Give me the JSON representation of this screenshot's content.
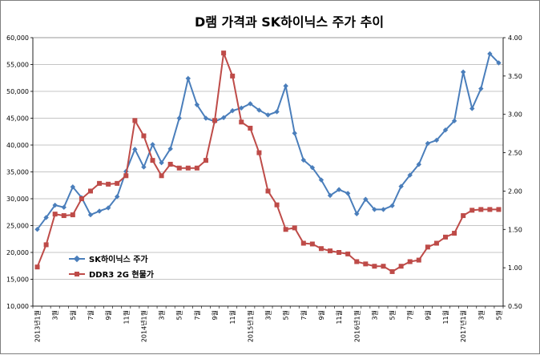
{
  "chart_data": {
    "type": "line",
    "title": "D램 가격과 SK하이닉스 주가 추이",
    "x_labels": [
      "2013년1월",
      "3월",
      "5월",
      "7월",
      "9월",
      "11월",
      "2014년1월",
      "3월",
      "5월",
      "7월",
      "9월",
      "11월",
      "2015년1월",
      "3월",
      "5월",
      "7월",
      "9월",
      "11월",
      "2016년1월",
      "3월",
      "5월",
      "7월",
      "9월",
      "11월",
      "2017년1월",
      "3월",
      "5월"
    ],
    "y_left": {
      "min": 10000,
      "max": 60000,
      "step": 5000,
      "tick_labels": [
        "10,000",
        "15,000",
        "20,000",
        "25,000",
        "30,000",
        "35,000",
        "40,000",
        "45,000",
        "50,000",
        "55,000",
        "60,000"
      ]
    },
    "y_right": {
      "min": 0.5,
      "max": 4.0,
      "step": 0.5,
      "tick_labels": [
        "0.50",
        "1.00",
        "1.50",
        "2.00",
        "2.50",
        "3.00",
        "3.50",
        "4.00"
      ]
    },
    "grid": true,
    "legend_position": "bottom-left",
    "series": [
      {
        "name": "SK하이닉스 주가",
        "axis": "left",
        "color": "#4a7ebb",
        "marker": "diamond",
        "values": [
          24300,
          26500,
          28800,
          28400,
          32200,
          30200,
          27000,
          27700,
          28300,
          30400,
          35100,
          39200,
          35900,
          40100,
          36700,
          39300,
          45000,
          52400,
          47500,
          45000,
          44400,
          45100,
          46400,
          46900,
          47700,
          46500,
          45600,
          46200,
          51000,
          42200,
          37200,
          35800,
          33500,
          30600,
          31700,
          31000,
          27200,
          29900,
          28000,
          28000,
          28700,
          32300,
          34400,
          36400,
          40300,
          40900,
          42800,
          44500,
          53600,
          46800,
          50500,
          57000,
          55300
        ]
      },
      {
        "name": "DDR3 2G 현물가",
        "axis": "right",
        "color": "#be4b48",
        "marker": "square",
        "values": [
          1.01,
          1.3,
          1.7,
          1.68,
          1.69,
          1.9,
          2.0,
          2.1,
          2.09,
          2.1,
          2.2,
          2.92,
          2.72,
          2.4,
          2.2,
          2.35,
          2.3,
          2.3,
          2.3,
          2.4,
          2.92,
          3.8,
          3.5,
          2.9,
          2.82,
          2.5,
          2.0,
          1.82,
          1.5,
          1.52,
          1.32,
          1.31,
          1.25,
          1.22,
          1.2,
          1.18,
          1.08,
          1.05,
          1.02,
          1.02,
          0.95,
          1.02,
          1.08,
          1.1,
          1.27,
          1.32,
          1.4,
          1.45,
          1.68,
          1.75,
          1.76,
          1.76,
          1.76
        ]
      }
    ]
  }
}
